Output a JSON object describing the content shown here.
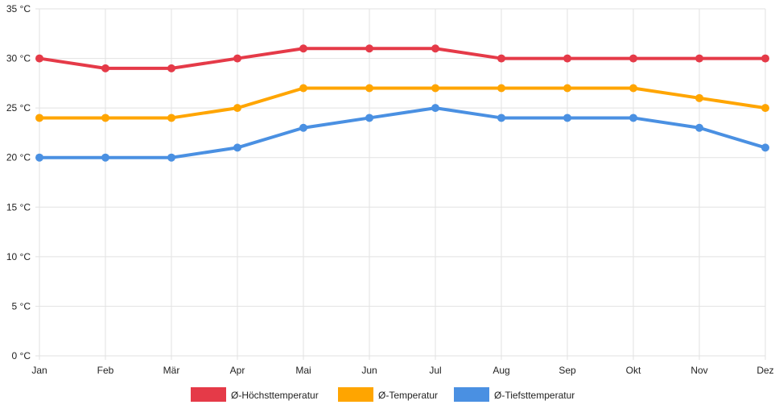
{
  "chart_data": {
    "type": "line",
    "title": "",
    "xlabel": "",
    "ylabel": "",
    "categories": [
      "Jan",
      "Feb",
      "Mär",
      "Apr",
      "Mai",
      "Jun",
      "Jul",
      "Aug",
      "Sep",
      "Okt",
      "Nov",
      "Dez"
    ],
    "ylim": [
      0,
      35
    ],
    "yticks": [
      0,
      5,
      10,
      15,
      20,
      25,
      30,
      35
    ],
    "ytick_labels": [
      "0 °C",
      "5 °C",
      "10 °C",
      "15 °C",
      "20 °C",
      "25 °C",
      "30 °C",
      "35 °C"
    ],
    "grid": true,
    "legend_position": "bottom",
    "series": [
      {
        "name": "Ø-Höchsttemperatur",
        "color": "#e53a48",
        "values": [
          30,
          29,
          29,
          30,
          31,
          31,
          31,
          30,
          30,
          30,
          30,
          30
        ]
      },
      {
        "name": "Ø-Temperatur",
        "color": "#ffa500",
        "values": [
          24,
          24,
          24,
          25,
          27,
          27,
          27,
          27,
          27,
          27,
          26,
          25
        ]
      },
      {
        "name": "Ø-Tiefsttemperatur",
        "color": "#4a90e2",
        "values": [
          20,
          20,
          20,
          21,
          23,
          24,
          25,
          24,
          24,
          24,
          23,
          21
        ]
      }
    ]
  }
}
